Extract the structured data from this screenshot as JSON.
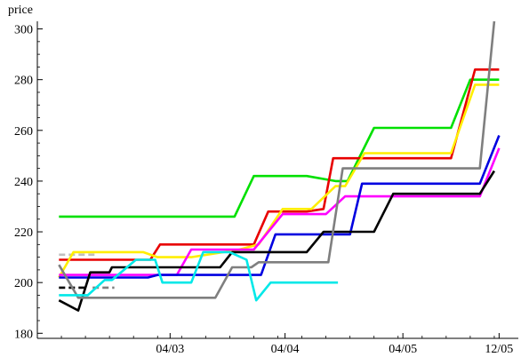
{
  "chart_data": {
    "type": "line",
    "title": "",
    "ylabel": "price",
    "xlabel": "",
    "xlim": [
      0,
      10
    ],
    "ylim": [
      178,
      303
    ],
    "yticks": [
      180,
      200,
      220,
      240,
      260,
      280,
      300
    ],
    "xticks": [
      {
        "x": 2.76,
        "label": "04/03"
      },
      {
        "x": 5.15,
        "label": "04/04"
      },
      {
        "x": 7.6,
        "label": "04/05"
      },
      {
        "x": 9.6,
        "label": "12/05"
      }
    ],
    "grid": false,
    "legend": "none",
    "series": [
      {
        "color": "#00e000",
        "points": [
          [
            0.45,
            226
          ],
          [
            4.1,
            226
          ],
          [
            4.5,
            242
          ],
          [
            5.6,
            242
          ],
          [
            6.2,
            240
          ],
          [
            6.45,
            240
          ],
          [
            7,
            261
          ],
          [
            8.6,
            261
          ],
          [
            9,
            280
          ],
          [
            9.6,
            280
          ]
        ]
      },
      {
        "color": "#e80000",
        "points": [
          [
            0.45,
            209
          ],
          [
            2.05,
            209
          ],
          [
            2.35,
            209
          ],
          [
            2.55,
            215
          ],
          [
            4.2,
            215
          ],
          [
            4.5,
            215
          ],
          [
            4.8,
            228
          ],
          [
            5.6,
            228
          ],
          [
            5.95,
            229
          ],
          [
            6.15,
            249
          ],
          [
            6.5,
            249
          ],
          [
            7.3,
            249
          ],
          [
            8.2,
            249
          ],
          [
            8.6,
            249
          ],
          [
            9.1,
            284
          ],
          [
            9.6,
            284
          ]
        ]
      },
      {
        "color": "#ffee00",
        "points": [
          [
            0.45,
            202
          ],
          [
            0.75,
            212
          ],
          [
            2.2,
            212
          ],
          [
            2.5,
            210
          ],
          [
            3.2,
            210
          ],
          [
            4.2,
            213
          ],
          [
            4.6,
            215
          ],
          [
            5.1,
            229
          ],
          [
            5.7,
            229
          ],
          [
            6.2,
            238
          ],
          [
            6.4,
            238
          ],
          [
            6.8,
            251
          ],
          [
            8.2,
            251
          ],
          [
            8.6,
            251
          ],
          [
            9.1,
            278
          ],
          [
            9.6,
            278
          ]
        ]
      },
      {
        "color": "#ff00ff",
        "points": [
          [
            0.45,
            203
          ],
          [
            2.5,
            203
          ],
          [
            2.9,
            203
          ],
          [
            3.2,
            213
          ],
          [
            4.5,
            213
          ],
          [
            5.1,
            227
          ],
          [
            5.6,
            227
          ],
          [
            6.0,
            227
          ],
          [
            6.4,
            234
          ],
          [
            7.6,
            234
          ],
          [
            9.2,
            234
          ],
          [
            9.6,
            253
          ]
        ]
      },
      {
        "color": "#0000e0",
        "points": [
          [
            0.45,
            202
          ],
          [
            2.3,
            202
          ],
          [
            2.5,
            203
          ],
          [
            4.2,
            203
          ],
          [
            4.65,
            203
          ],
          [
            4.95,
            219
          ],
          [
            6.0,
            219
          ],
          [
            6.5,
            219
          ],
          [
            6.75,
            239
          ],
          [
            8.3,
            239
          ],
          [
            9.2,
            239
          ],
          [
            9.6,
            258
          ]
        ]
      },
      {
        "color": "#000000",
        "points": [
          [
            0.45,
            193
          ],
          [
            0.85,
            189
          ],
          [
            1.1,
            204
          ],
          [
            1.5,
            204
          ],
          [
            1.55,
            206
          ],
          [
            3.8,
            206
          ],
          [
            4.05,
            212
          ],
          [
            5.2,
            212
          ],
          [
            5.6,
            212
          ],
          [
            5.95,
            220
          ],
          [
            6.6,
            220
          ],
          [
            7.0,
            220
          ],
          [
            7.4,
            235
          ],
          [
            8.6,
            235
          ],
          [
            9.2,
            235
          ],
          [
            9.5,
            244
          ]
        ]
      },
      {
        "color": "#7f7f7f",
        "points": [
          [
            0.45,
            207
          ],
          [
            0.85,
            194
          ],
          [
            3.7,
            194
          ],
          [
            4.05,
            206
          ],
          [
            4.45,
            206
          ],
          [
            4.6,
            208
          ],
          [
            6.05,
            208
          ],
          [
            6.35,
            245
          ],
          [
            8.6,
            245
          ],
          [
            9.2,
            245
          ],
          [
            9.5,
            303
          ]
        ]
      },
      {
        "color": "#00e8e8",
        "points": [
          [
            0.45,
            195
          ],
          [
            1.05,
            195
          ],
          [
            1.4,
            201
          ],
          [
            1.55,
            201
          ],
          [
            2.05,
            209
          ],
          [
            2.45,
            209
          ],
          [
            2.6,
            200
          ],
          [
            3.2,
            200
          ],
          [
            3.45,
            212
          ],
          [
            4.0,
            212
          ],
          [
            4.35,
            209
          ],
          [
            4.55,
            193
          ],
          [
            4.85,
            200
          ],
          [
            6.25,
            200
          ]
        ]
      }
    ],
    "short_dashes": [
      {
        "color": "#bfbfbf",
        "dash": "7,4",
        "points": [
          [
            0.45,
            211
          ],
          [
            1.2,
            211
          ]
        ]
      },
      {
        "color": "#000000",
        "dash": "7,4",
        "points": [
          [
            0.45,
            198
          ],
          [
            1.0,
            198
          ]
        ]
      },
      {
        "color": "#7f7f7f",
        "dash": "7,4",
        "points": [
          [
            1.15,
            198
          ],
          [
            1.6,
            198
          ]
        ]
      }
    ]
  }
}
